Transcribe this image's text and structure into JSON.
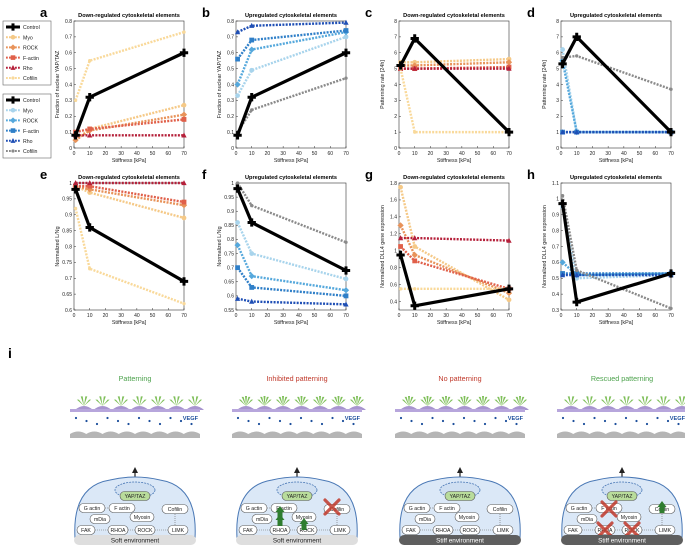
{
  "colors": {
    "control": "#000000",
    "down": {
      "myo": "#f5c987",
      "rock": "#e8935a",
      "factin": "#e0604a",
      "rho": "#b5203a",
      "cofilin": "#f9d99a"
    },
    "up": {
      "myo": "#a8d4ec",
      "rock": "#55a8dc",
      "factin": "#2f7fc8",
      "rho": "#1f4fb5",
      "cofilin": "#8a8a8a"
    },
    "green_text": "#4ca24c",
    "red_text": "#c0392b",
    "vegf": "#1d4f9c"
  },
  "legend_down": {
    "items": [
      {
        "label": "Control",
        "key": "control"
      },
      {
        "label": "Myo",
        "key": "myo"
      },
      {
        "label": "ROCK",
        "key": "rock"
      },
      {
        "label": "F-actin",
        "key": "factin"
      },
      {
        "label": "Rho",
        "key": "rho"
      },
      {
        "label": "Cofilin",
        "key": "cofilin"
      }
    ]
  },
  "legend_up": {
    "items": [
      {
        "label": "Control",
        "key": "control"
      },
      {
        "label": "Myo",
        "key": "myo"
      },
      {
        "label": "ROCK",
        "key": "rock"
      },
      {
        "label": "F-actin",
        "key": "factin"
      },
      {
        "label": "Rho",
        "key": "rho"
      },
      {
        "label": "Cofilin",
        "key": "cofilin"
      }
    ]
  },
  "chart_data": [
    {
      "id": "a",
      "letter": "a",
      "type": "line",
      "group": "down",
      "title": "Down-regulated cytoskeletal elements",
      "xlabel": "Stiffness [kPa]",
      "ylabel": "Fraction of nuclear YAP/TAZ",
      "xlim": [
        0,
        70
      ],
      "ylim": [
        0,
        0.8
      ],
      "xticks": [
        0,
        10,
        20,
        30,
        40,
        50,
        60,
        70
      ],
      "yticks": [
        0,
        0.1,
        0.2,
        0.3,
        0.4,
        0.5,
        0.6,
        0.7,
        0.8
      ],
      "ytick_labels": [
        "0",
        "0.1",
        "0.2",
        "0.3",
        "0.4",
        "0.5",
        "0.6",
        "0.7",
        "0.8"
      ],
      "x": [
        1,
        10,
        70
      ],
      "series": [
        {
          "key": "control",
          "values": [
            0.08,
            0.32,
            0.6
          ]
        },
        {
          "key": "myo",
          "values": [
            0.05,
            0.12,
            0.27
          ]
        },
        {
          "key": "rock",
          "values": [
            0.05,
            0.11,
            0.21
          ]
        },
        {
          "key": "factin",
          "values": [
            0.1,
            0.12,
            0.18
          ]
        },
        {
          "key": "rho",
          "values": [
            0.08,
            0.08,
            0.08
          ]
        },
        {
          "key": "cofilin",
          "values": [
            0.3,
            0.55,
            0.73
          ]
        }
      ]
    },
    {
      "id": "b",
      "letter": "b",
      "type": "line",
      "group": "up",
      "title": "Upregulated cytoskeletal elements",
      "xlabel": "Stiffness [kPa]",
      "ylabel": "Fraction of nuclear YAP/TAZ",
      "xlim": [
        0,
        70
      ],
      "ylim": [
        0,
        0.8
      ],
      "xticks": [
        0,
        10,
        20,
        30,
        40,
        50,
        60,
        70
      ],
      "yticks": [
        0,
        0.1,
        0.2,
        0.3,
        0.4,
        0.5,
        0.6,
        0.7,
        0.8
      ],
      "ytick_labels": [
        "0",
        "0.1",
        "0.2",
        "0.3",
        "0.4",
        "0.5",
        "0.6",
        "0.7",
        "0.8"
      ],
      "x": [
        1,
        10,
        70
      ],
      "series": [
        {
          "key": "control",
          "values": [
            0.08,
            0.32,
            0.6
          ]
        },
        {
          "key": "myo",
          "values": [
            0.33,
            0.49,
            0.7
          ]
        },
        {
          "key": "rock",
          "values": [
            0.4,
            0.62,
            0.73
          ]
        },
        {
          "key": "factin",
          "values": [
            0.56,
            0.68,
            0.74
          ]
        },
        {
          "key": "rho",
          "values": [
            0.73,
            0.77,
            0.79
          ]
        },
        {
          "key": "cofilin",
          "values": [
            0.1,
            0.24,
            0.44
          ]
        }
      ]
    },
    {
      "id": "c",
      "letter": "c",
      "type": "line",
      "group": "down",
      "title": "Down-regulated cytoskeletal elements",
      "xlabel": "Stiffness [kPa]",
      "ylabel": "Patterning rate [24h]",
      "xlim": [
        0,
        70
      ],
      "ylim": [
        0,
        8
      ],
      "xticks": [
        0,
        10,
        20,
        30,
        40,
        50,
        60,
        70
      ],
      "yticks": [
        0,
        1,
        2,
        3,
        4,
        5,
        6,
        7,
        8
      ],
      "ytick_labels": [
        "0",
        "1",
        "2",
        "3",
        "4",
        "5",
        "6",
        "7",
        "8"
      ],
      "x": [
        1,
        10,
        70
      ],
      "series": [
        {
          "key": "control",
          "values": [
            5.2,
            6.9,
            1
          ]
        },
        {
          "key": "myo",
          "values": [
            5.4,
            5.4,
            5.6
          ]
        },
        {
          "key": "rock",
          "values": [
            5.2,
            5.2,
            5.4
          ]
        },
        {
          "key": "factin",
          "values": [
            5.0,
            5.0,
            5.1
          ]
        },
        {
          "key": "rho",
          "values": [
            5.0,
            5.0,
            5.0
          ]
        },
        {
          "key": "cofilin",
          "values": [
            5.0,
            1,
            1
          ]
        }
      ]
    },
    {
      "id": "d",
      "letter": "d",
      "type": "line",
      "group": "up",
      "title": "Upregulated cytoskeletal elements",
      "xlabel": "Stiffness [kPa]",
      "ylabel": "Patterning rate [24h]",
      "xlim": [
        0,
        70
      ],
      "ylim": [
        0,
        8
      ],
      "xticks": [
        0,
        10,
        20,
        30,
        40,
        50,
        60,
        70
      ],
      "yticks": [
        0,
        1,
        2,
        3,
        4,
        5,
        6,
        7,
        8
      ],
      "ytick_labels": [
        "0",
        "1",
        "2",
        "3",
        "4",
        "5",
        "6",
        "7",
        "8"
      ],
      "x": [
        1,
        10,
        70
      ],
      "series": [
        {
          "key": "control",
          "values": [
            5.3,
            7,
            1
          ]
        },
        {
          "key": "myo",
          "values": [
            6.2,
            1,
            1
          ]
        },
        {
          "key": "rock",
          "values": [
            5.5,
            1,
            1
          ]
        },
        {
          "key": "factin",
          "values": [
            1,
            1,
            1
          ]
        },
        {
          "key": "rho",
          "values": [
            1,
            1,
            1
          ]
        },
        {
          "key": "cofilin",
          "values": [
            5.7,
            5.8,
            3.7
          ]
        }
      ]
    },
    {
      "id": "e",
      "letter": "e",
      "type": "line",
      "group": "down",
      "title": "Down-regulated cytoskeletal elements",
      "xlabel": "Stiffness [kPa]",
      "ylabel": "Normalized L/Ng",
      "xlim": [
        0,
        70
      ],
      "ylim": [
        0.6,
        1
      ],
      "xticks": [
        0,
        10,
        20,
        30,
        40,
        50,
        60,
        70
      ],
      "yticks": [
        0.6,
        0.65,
        0.7,
        0.75,
        0.8,
        0.85,
        0.9,
        0.95,
        1
      ],
      "ytick_labels": [
        "0.6",
        "0.65",
        "0.7",
        "0.75",
        "0.8",
        "0.85",
        "0.9",
        "0.95",
        "1"
      ],
      "x": [
        1,
        10,
        70
      ],
      "series": [
        {
          "key": "control",
          "values": [
            0.98,
            0.86,
            0.69
          ]
        },
        {
          "key": "myo",
          "values": [
            0.99,
            0.97,
            0.89
          ]
        },
        {
          "key": "rock",
          "values": [
            0.99,
            0.98,
            0.93
          ]
        },
        {
          "key": "factin",
          "values": [
            0.99,
            0.99,
            0.94
          ]
        },
        {
          "key": "rho",
          "values": [
            1.0,
            1.0,
            1.0
          ]
        },
        {
          "key": "cofilin",
          "values": [
            0.92,
            0.73,
            0.62
          ]
        }
      ]
    },
    {
      "id": "f",
      "letter": "f",
      "type": "line",
      "group": "up",
      "title": "Upregulated cytoskeletal elements",
      "xlabel": "Stiffness [kPa]",
      "ylabel": "Normalized L/Ng",
      "xlim": [
        0,
        70
      ],
      "ylim": [
        0.55,
        1
      ],
      "xticks": [
        0,
        10,
        20,
        30,
        40,
        50,
        60,
        70
      ],
      "yticks": [
        0.55,
        0.6,
        0.65,
        0.7,
        0.75,
        0.8,
        0.85,
        0.9,
        0.95,
        1
      ],
      "ytick_labels": [
        "0.55",
        "0.6",
        "0.65",
        "0.7",
        "0.75",
        "0.8",
        "0.85",
        "0.9",
        "0.95",
        "1"
      ],
      "x": [
        1,
        10,
        70
      ],
      "series": [
        {
          "key": "control",
          "values": [
            0.98,
            0.86,
            0.69
          ]
        },
        {
          "key": "myo",
          "values": [
            0.86,
            0.75,
            0.66
          ]
        },
        {
          "key": "rock",
          "values": [
            0.78,
            0.67,
            0.62
          ]
        },
        {
          "key": "factin",
          "values": [
            0.7,
            0.63,
            0.6
          ]
        },
        {
          "key": "rho",
          "values": [
            0.59,
            0.58,
            0.57
          ]
        },
        {
          "key": "cofilin",
          "values": [
            1.0,
            0.92,
            0.79
          ]
        }
      ]
    },
    {
      "id": "g",
      "letter": "g",
      "type": "line",
      "group": "down",
      "title": "Down-regulated cytoskeletal elements",
      "xlabel": "Stiffness [kPa]",
      "ylabel": "Normalized DLL4 gene expression",
      "xlim": [
        0,
        70
      ],
      "ylim": [
        0.3,
        1.8
      ],
      "xticks": [
        0,
        10,
        20,
        30,
        40,
        50,
        60,
        70
      ],
      "yticks": [
        0.4,
        0.6,
        0.8,
        1,
        1.2,
        1.4,
        1.6,
        1.8
      ],
      "ytick_labels": [
        "0.4",
        "0.6",
        "0.8",
        "1",
        "1.2",
        "1.4",
        "1.6",
        "1.8"
      ],
      "x": [
        1,
        10,
        70
      ],
      "series": [
        {
          "key": "control",
          "values": [
            0.95,
            0.35,
            0.55
          ]
        },
        {
          "key": "myo",
          "values": [
            1.75,
            1.05,
            0.42
          ]
        },
        {
          "key": "rock",
          "values": [
            1.3,
            0.95,
            0.5
          ]
        },
        {
          "key": "factin",
          "values": [
            1.05,
            0.88,
            0.55
          ]
        },
        {
          "key": "rho",
          "values": [
            1.15,
            1.15,
            1.12
          ]
        },
        {
          "key": "cofilin",
          "values": [
            0.55,
            0.55,
            0.55
          ]
        }
      ]
    },
    {
      "id": "h",
      "letter": "h",
      "type": "line",
      "group": "up",
      "title": "Upregulated cytoskeletal elements",
      "xlabel": "Stiffness [kPa]",
      "ylabel": "Normalized DLL4 gene expression",
      "xlim": [
        0,
        70
      ],
      "ylim": [
        0.3,
        1.1
      ],
      "xticks": [
        0,
        10,
        20,
        30,
        40,
        50,
        60,
        70
      ],
      "yticks": [
        0.3,
        0.4,
        0.5,
        0.6,
        0.7,
        0.8,
        0.9,
        1,
        1.1
      ],
      "ytick_labels": [
        "0.3",
        "0.4",
        "0.5",
        "0.6",
        "0.7",
        "0.8",
        "0.9",
        "1",
        "1.1"
      ],
      "x": [
        1,
        10,
        70
      ],
      "series": [
        {
          "key": "control",
          "values": [
            0.97,
            0.35,
            0.53
          ]
        },
        {
          "key": "myo",
          "values": [
            0.95,
            0.5,
            0.52
          ]
        },
        {
          "key": "rock",
          "values": [
            0.6,
            0.52,
            0.53
          ]
        },
        {
          "key": "factin",
          "values": [
            0.53,
            0.53,
            0.53
          ]
        },
        {
          "key": "rho",
          "values": [
            0.52,
            0.52,
            0.52
          ]
        },
        {
          "key": "cofilin",
          "values": [
            1.02,
            0.55,
            0.31
          ]
        }
      ]
    }
  ],
  "schematic": {
    "letter": "i",
    "panels": [
      {
        "heading": "Patterning",
        "heading_color": "green",
        "env": "Soft environment",
        "env_dark": false,
        "variant": "normal"
      },
      {
        "heading": "Inhibited patterning",
        "heading_color": "red",
        "env": "Soft environment",
        "env_dark": false,
        "variant": "inhibited"
      },
      {
        "heading": "No patterning",
        "heading_color": "red",
        "env": "Stiff environment",
        "env_dark": true,
        "variant": "normal"
      },
      {
        "heading": "Rescued patterning",
        "heading_color": "green",
        "env": "Stiff environment",
        "env_dark": true,
        "variant": "rescued"
      }
    ],
    "vegf_label": "VEGF",
    "nodes": {
      "yap": "YAP/TAZ",
      "gactin": "G actin",
      "factin": "F actin",
      "mdia": "mDia",
      "myosin": "Myosin",
      "cofilin": "Cofilin",
      "fak": "FAK",
      "rhoa": "RHOA",
      "rock": "ROCK",
      "limk": "LIMK"
    }
  }
}
